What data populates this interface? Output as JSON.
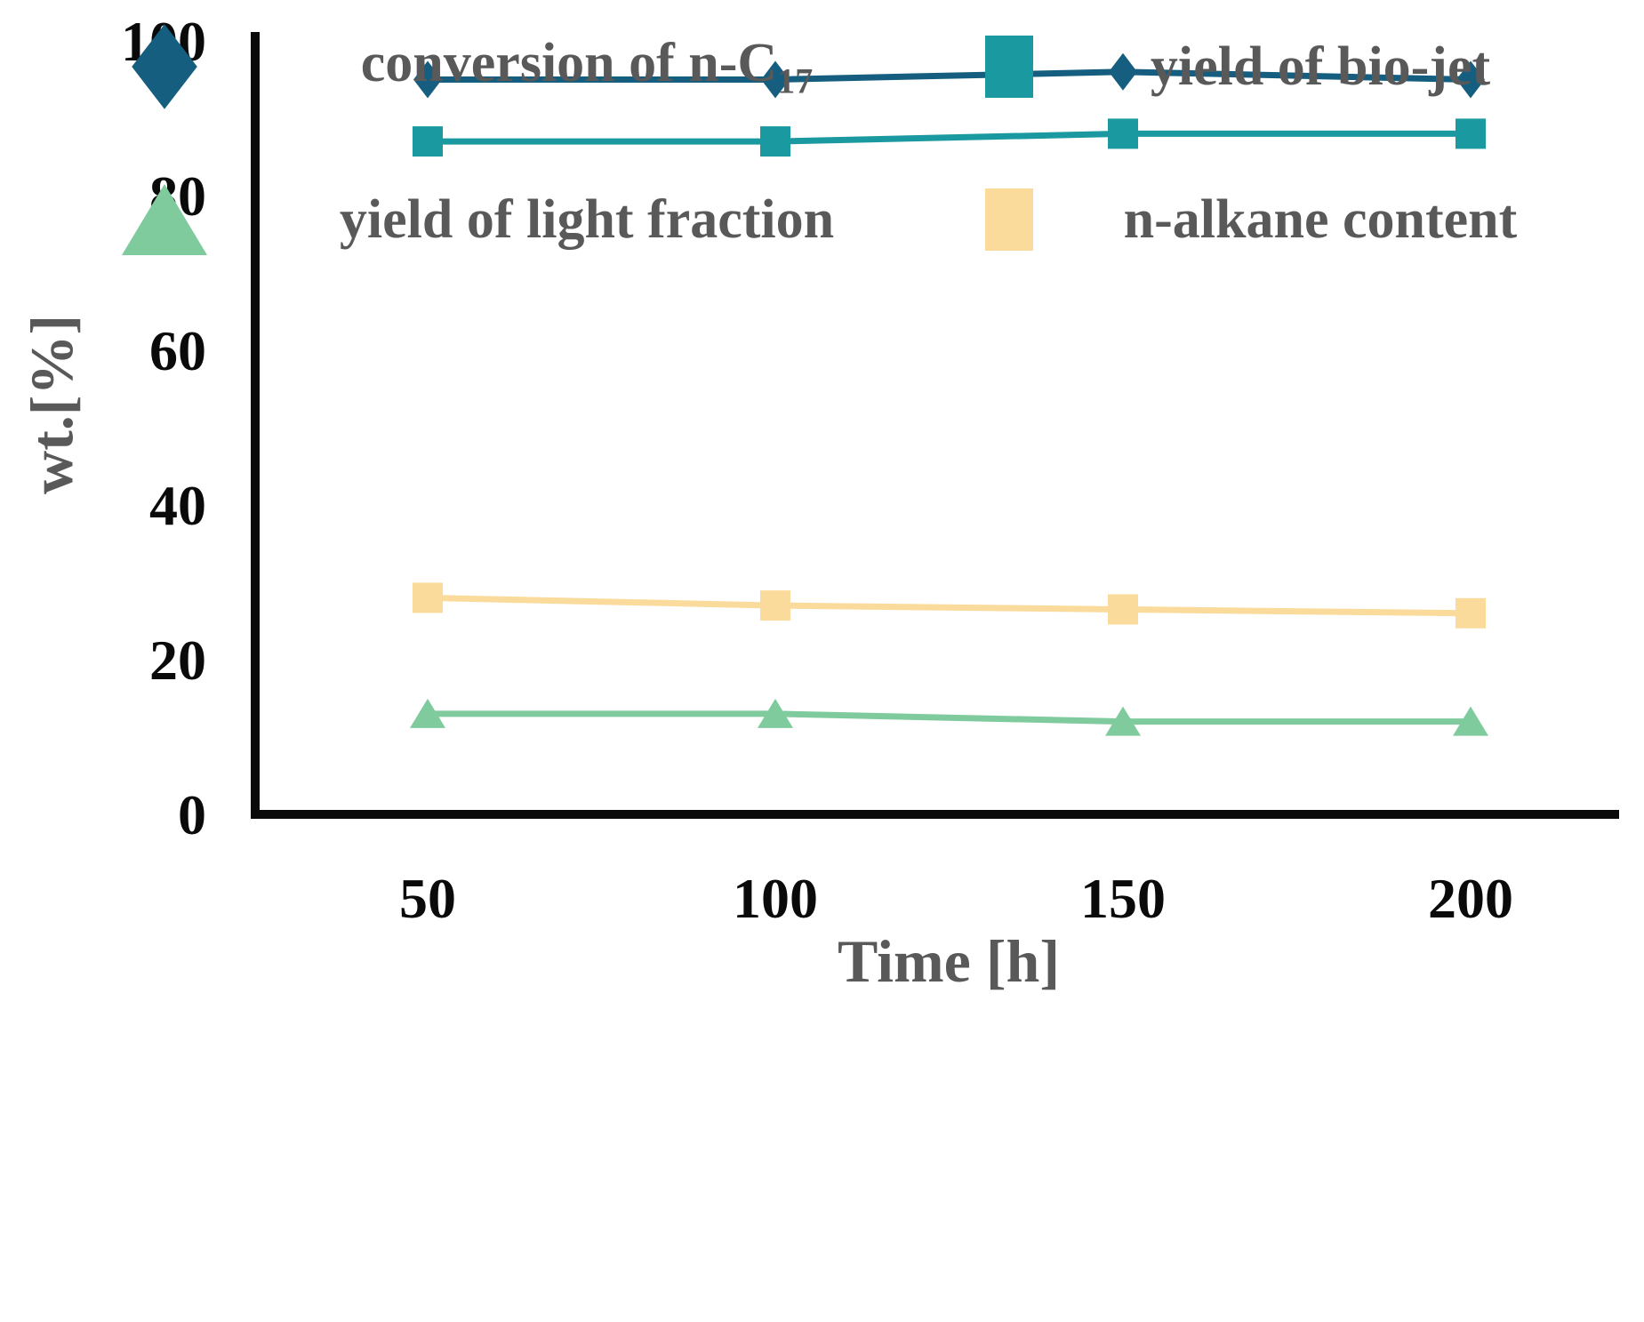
{
  "chart_data": {
    "type": "line",
    "x": [
      50,
      100,
      150,
      200
    ],
    "xticks": [
      50,
      100,
      150,
      200
    ],
    "yticks": [
      0,
      20,
      40,
      60,
      80,
      100
    ],
    "ylim": [
      0,
      100
    ],
    "xlabel": "Time [h]",
    "ylabel": "wt.[%]",
    "grid": false,
    "legend_position": "bottom",
    "axis_color": "#0a0a0a",
    "text_color": "#595959",
    "series": [
      {
        "name": "conversion of n-C17",
        "label_main": "conversion of n-C",
        "label_sub": "17",
        "marker": "diamond",
        "color": "#155e7f",
        "values": [
          95,
          95,
          96,
          95
        ]
      },
      {
        "name": "yield of bio-jet",
        "label_main": "yield of bio-jet",
        "label_sub": "",
        "marker": "square",
        "color": "#1a9aa0",
        "values": [
          87,
          87,
          88,
          88
        ]
      },
      {
        "name": "yield of light fraction",
        "label_main": "yield of light fraction",
        "label_sub": "",
        "marker": "triangle",
        "color": "#80cb9e",
        "values": [
          13,
          13,
          12,
          12
        ]
      },
      {
        "name": "n-alkane content",
        "label_main": "n-alkane content",
        "label_sub": "",
        "marker": "square",
        "color": "#fbdb9b",
        "values": [
          28,
          27,
          26.5,
          26
        ]
      }
    ]
  }
}
